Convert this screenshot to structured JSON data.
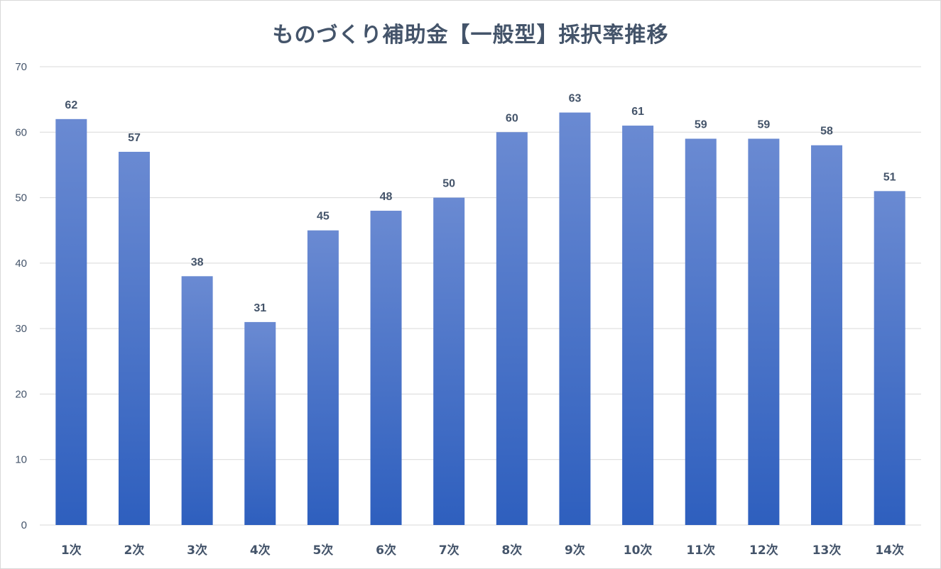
{
  "chart_data": {
    "type": "bar",
    "title": "ものづくり補助金【一般型】採択率推移",
    "xlabel": "",
    "ylabel": "",
    "categories": [
      "1次",
      "2次",
      "3次",
      "4次",
      "5次",
      "6次",
      "7次",
      "8次",
      "9次",
      "10次",
      "11次",
      "12次",
      "13次",
      "14次"
    ],
    "values": [
      62,
      57,
      38,
      31,
      45,
      48,
      50,
      60,
      63,
      61,
      59,
      59,
      58,
      51
    ],
    "ylim": [
      0,
      70
    ],
    "yticks": [
      0,
      10,
      20,
      30,
      40,
      50,
      60,
      70
    ],
    "grid": true,
    "data_labels": true,
    "legend": "none",
    "colors": {
      "bar_top": "#6a8ad2",
      "bar_bottom": "#2e5fbe",
      "grid": "#d9d9d9",
      "text": "#44546a"
    }
  }
}
